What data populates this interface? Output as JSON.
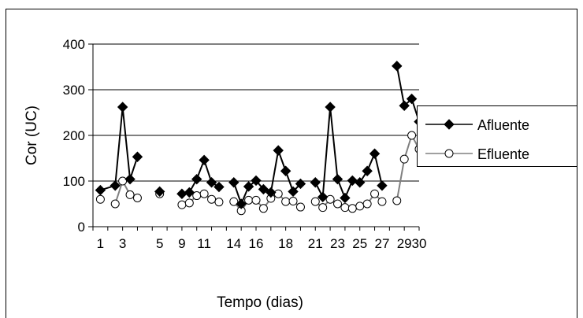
{
  "chart_data": {
    "type": "line",
    "xlabel": "Tempo (dias)",
    "ylabel": "Cor (UC)",
    "ylim": [
      0,
      400
    ],
    "y_ticks": [
      0,
      100,
      200,
      300,
      400
    ],
    "x_tick_labels": [
      "1",
      "3",
      "5",
      "9",
      "11",
      "14",
      "16",
      "18",
      "21",
      "23",
      "25",
      "27",
      "29",
      "30"
    ],
    "grid": "horizontal",
    "legend_position": "right",
    "series": [
      {
        "name": "Afluente",
        "marker": "diamond",
        "color": "#000000",
        "segments": [
          [
            [
              0,
              80
            ],
            [
              1,
              90
            ],
            [
              1.5,
              262
            ],
            [
              2,
              104
            ],
            [
              2.5,
              153
            ]
          ],
          [
            [
              4,
              77
            ]
          ],
          [
            [
              5.5,
              72
            ],
            [
              6,
              75
            ],
            [
              6.5,
              104
            ],
            [
              7,
              146
            ],
            [
              7.5,
              97
            ],
            [
              8,
              87
            ]
          ],
          [
            [
              9,
              97
            ],
            [
              9.5,
              50
            ],
            [
              10,
              88
            ],
            [
              10.5,
              101
            ],
            [
              11,
              82
            ],
            [
              11.5,
              75
            ],
            [
              12,
              167
            ],
            [
              12.5,
              122
            ],
            [
              13,
              77
            ],
            [
              13.5,
              94
            ]
          ],
          [
            [
              14.5,
              97
            ],
            [
              15,
              65
            ],
            [
              15.5,
              262
            ],
            [
              16,
              104
            ],
            [
              16.5,
              63
            ],
            [
              17,
              101
            ],
            [
              17.5,
              97
            ],
            [
              18,
              122
            ],
            [
              18.5,
              160
            ],
            [
              19,
              90
            ]
          ],
          [
            [
              20,
              352
            ],
            [
              20.5,
              265
            ],
            [
              21,
              280
            ],
            [
              21.5,
              230
            ]
          ]
        ]
      },
      {
        "name": "Efluente",
        "marker": "circle",
        "color": "#808080",
        "segments": [
          [
            [
              0,
              60
            ]
          ],
          [
            [
              1,
              50
            ],
            [
              1.5,
              100
            ],
            [
              2,
              70
            ],
            [
              2.5,
              63
            ]
          ],
          [
            [
              4,
              72
            ]
          ],
          [
            [
              5.5,
              48
            ],
            [
              6,
              52
            ],
            [
              6.5,
              68
            ],
            [
              7,
              72
            ],
            [
              7.5,
              60
            ],
            [
              8,
              54
            ]
          ],
          [
            [
              9,
              55
            ],
            [
              9.5,
              35
            ],
            [
              10,
              58
            ],
            [
              10.5,
              58
            ],
            [
              11,
              40
            ],
            [
              11.5,
              62
            ],
            [
              12,
              72
            ],
            [
              12.5,
              55
            ],
            [
              13,
              56
            ],
            [
              13.5,
              43
            ]
          ],
          [
            [
              14.5,
              55
            ],
            [
              15,
              42
            ],
            [
              15.5,
              60
            ],
            [
              16,
              50
            ],
            [
              16.5,
              42
            ],
            [
              17,
              40
            ],
            [
              17.5,
              45
            ],
            [
              18,
              50
            ],
            [
              18.5,
              72
            ],
            [
              19,
              55
            ]
          ],
          [
            [
              20,
              57
            ],
            [
              20.5,
              148
            ],
            [
              21,
              200
            ],
            [
              21.5,
              170
            ]
          ]
        ]
      }
    ]
  }
}
